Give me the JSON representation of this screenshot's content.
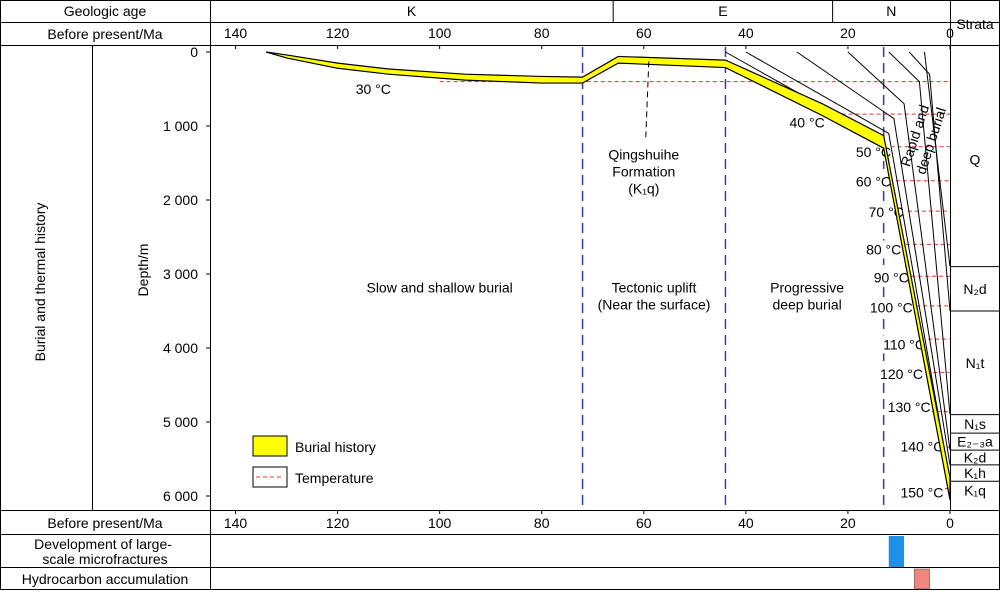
{
  "header": {
    "geologic_age_label": "Geologic age",
    "before_present_label": "Before present/Ma",
    "strata_label": "Strata",
    "periods": [
      {
        "name": "K",
        "from": 145,
        "to": 66
      },
      {
        "name": "E",
        "from": 66,
        "to": 23
      },
      {
        "name": "N",
        "from": 23,
        "to": 0
      }
    ]
  },
  "side_labels": {
    "row_title": "Burial and thermal history",
    "ylabel": "Depth/m"
  },
  "bottom_rows": {
    "before_present_label": "Before present/Ma",
    "microfractures_label": [
      "Development of large-",
      "scale microfractures"
    ],
    "hydrocarbon_label": "Hydrocarbon accumulation",
    "microfractures_interval_ma": [
      12,
      9
    ],
    "hydrocarbon_interval_ma": [
      7,
      4
    ],
    "microfractures_color": "#1e90e6",
    "hydrocarbon_color": "#f0877c"
  },
  "colors": {
    "burial_fill": "#ffff00",
    "temperature_line": "#e03030",
    "stage_divider": "#3a3ab0"
  },
  "legend": {
    "burial": "Burial history",
    "temperature": "Temperature"
  },
  "stages": [
    {
      "lines": [
        "Slow and shallow burial"
      ],
      "anchor_ma": 100,
      "anchor_depth": 3250
    },
    {
      "lines": [
        "Tectonic uplift",
        "(Near the surface)"
      ],
      "anchor_ma": 58,
      "anchor_depth": 3250
    },
    {
      "lines": [
        "Progressive",
        "deep burial"
      ],
      "anchor_ma": 28,
      "anchor_depth": 3250
    },
    {
      "lines": [
        "Rapid and",
        "deep burial"
      ],
      "anchor_ma": 6,
      "anchor_depth": 1150,
      "rotate": -72
    }
  ],
  "annotation": {
    "lines": [
      "Qingshuihe",
      "Formation",
      "(K₁q)"
    ],
    "text_ma": 60,
    "text_depth": 1450,
    "arrow_to_ma": 59,
    "arrow_to_depth": 100
  },
  "strata": [
    {
      "label": "Q",
      "top": 0,
      "bottom": 2900
    },
    {
      "label": "N₂d",
      "top": 2900,
      "bottom": 3500
    },
    {
      "label": "N₁t",
      "top": 3500,
      "bottom": 4900
    },
    {
      "label": "N₁s",
      "top": 4900,
      "bottom": 5150
    },
    {
      "label": "E₂₋₃a",
      "top": 5150,
      "bottom": 5380
    },
    {
      "label": "K₂d",
      "top": 5380,
      "bottom": 5580
    },
    {
      "label": "K₁h",
      "top": 5580,
      "bottom": 5800
    },
    {
      "label": "K₁q",
      "top": 5800,
      "bottom": 6050
    }
  ],
  "chart_data": {
    "type": "line",
    "xlabel": "Before present/Ma",
    "ylabel": "Depth/m",
    "xlim": [
      145,
      0
    ],
    "ylim": [
      0,
      6200
    ],
    "x_ticks": [
      140,
      120,
      100,
      80,
      60,
      40,
      20,
      0
    ],
    "y_ticks": [
      0,
      1000,
      2000,
      3000,
      4000,
      5000,
      6000
    ],
    "y_tick_labels": [
      "0",
      "1 000",
      "2 000",
      "3 000",
      "4 000",
      "5 000",
      "6 000"
    ],
    "stage_boundaries_ma": [
      72,
      44,
      13
    ],
    "burial_history": {
      "x": [
        134,
        130,
        120,
        110,
        95,
        80,
        72,
        65,
        44,
        25,
        13,
        0
      ],
      "top": [
        0,
        40,
        150,
        230,
        300,
        330,
        340,
        60,
        110,
        700,
        1130,
        5750
      ],
      "bottom": [
        0,
        80,
        220,
        300,
        380,
        420,
        420,
        150,
        210,
        860,
        1300,
        6050
      ]
    },
    "temperature_lines": [
      {
        "label": "30 °C",
        "depth": 400,
        "x_from": 100,
        "x_to": 0,
        "label_ma": 113,
        "label_depth": 500
      },
      {
        "label": "40 °C",
        "depth": 840,
        "x_from": 24,
        "x_to": 0,
        "label_ma": 28,
        "label_depth": 950
      },
      {
        "label": "50 °C",
        "depth": 1280,
        "x_from": 13,
        "x_to": 0,
        "label_ma": 15,
        "label_depth": 1350
      },
      {
        "label": "60 °C",
        "depth": 1740,
        "x_from": 12,
        "x_to": 0,
        "label_ma": 15,
        "label_depth": 1750
      },
      {
        "label": "70 °C",
        "depth": 2150,
        "x_from": 11,
        "x_to": 0,
        "label_ma": 12.5,
        "label_depth": 2160
      },
      {
        "label": "80 °C",
        "depth": 2600,
        "x_from": 10,
        "x_to": 0,
        "label_ma": 13,
        "label_depth": 2670
      },
      {
        "label": "90 °C",
        "depth": 3030,
        "x_from": 9,
        "x_to": 0,
        "label_ma": 11.5,
        "label_depth": 3050
      },
      {
        "label": "100 °C",
        "depth": 3430,
        "x_from": 8,
        "x_to": 0,
        "label_ma": 11.5,
        "label_depth": 3450
      },
      {
        "label": "110 °C",
        "depth": 3880,
        "x_from": 7,
        "x_to": 0,
        "label_ma": 9,
        "label_depth": 3950
      },
      {
        "label": "120 °C",
        "depth": 4330,
        "x_from": 6,
        "x_to": 0,
        "label_ma": 9.5,
        "label_depth": 4350
      },
      {
        "label": "130 °C",
        "depth": 4860,
        "x_from": 4,
        "x_to": 0,
        "label_ma": 8,
        "label_depth": 4800
      },
      {
        "label": "140 °C",
        "depth": 5340,
        "x_from": 2,
        "x_to": 0,
        "label_ma": 5.5,
        "label_depth": 5330
      },
      {
        "label": "150 °C",
        "depth": 5900,
        "x_from": 1,
        "x_to": 0,
        "label_ma": 5.5,
        "label_depth": 5950
      }
    ],
    "isochrons": [
      {
        "x": [
          44,
          13,
          0
        ],
        "depth": [
          0,
          1200,
          6050
        ]
      },
      {
        "x": [
          40,
          12,
          0
        ],
        "depth": [
          0,
          1100,
          5800
        ]
      },
      {
        "x": [
          30,
          11,
          0
        ],
        "depth": [
          0,
          900,
          5580
        ]
      },
      {
        "x": [
          20,
          9,
          0
        ],
        "depth": [
          0,
          700,
          5380
        ]
      },
      {
        "x": [
          12,
          6,
          0
        ],
        "depth": [
          0,
          400,
          4900
        ]
      },
      {
        "x": [
          8,
          4,
          0
        ],
        "depth": [
          0,
          300,
          3500
        ]
      },
      {
        "x": [
          5,
          0
        ],
        "depth": [
          0,
          2900
        ]
      }
    ]
  }
}
